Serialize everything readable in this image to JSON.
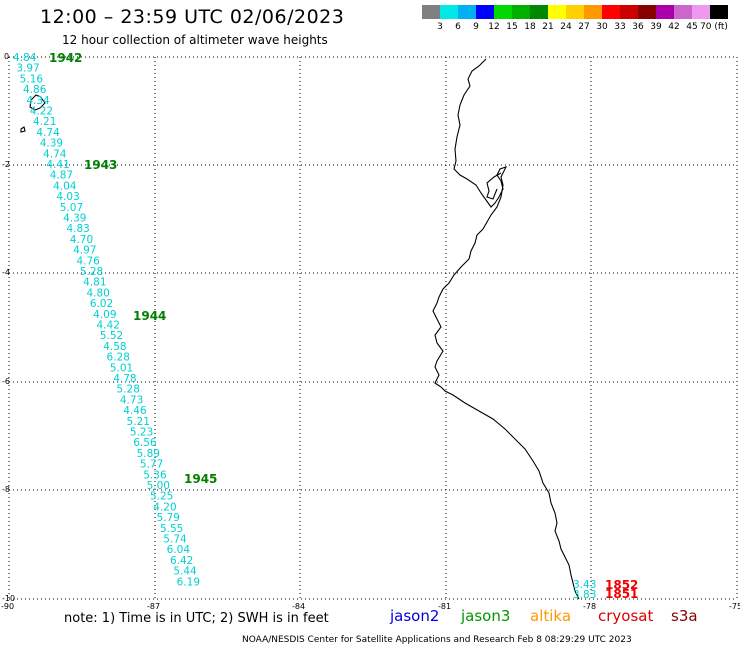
{
  "header": {
    "title": "12:00 – 23:59 UTC 02/06/2023",
    "subtitle": "12 hour collection of altimeter wave heights"
  },
  "colorbar": {
    "colors": [
      "#808080",
      "#00e8e8",
      "#00b0f0",
      "#0000ff",
      "#00d800",
      "#00b000",
      "#008800",
      "#ffff00",
      "#ffd000",
      "#ff9900",
      "#ff0000",
      "#cc0000",
      "#880000",
      "#aa00aa",
      "#cc66cc",
      "#ee99ee",
      "#000000"
    ],
    "labels": [
      "3",
      "6",
      "9",
      "12",
      "15",
      "18",
      "21",
      "24",
      "27",
      "30",
      "33",
      "36",
      "39",
      "42",
      "45",
      "70 (ft)"
    ]
  },
  "map": {
    "lon_range": [
      -90,
      -75
    ],
    "lat_range": [
      -10,
      0
    ],
    "x_ticks": [
      "-90",
      "-87",
      "-84",
      "-81",
      "-78",
      "-75"
    ],
    "y_ticks": [
      "0",
      "-2",
      "-4",
      "-6",
      "-8",
      "-10"
    ]
  },
  "track_jason3": {
    "color": "#00d0d0",
    "heights": [
      "4.84",
      "3.97",
      "5.16",
      "4.86",
      "4.34",
      "4.22",
      "4.21",
      "4.74",
      "4.39",
      "4.74",
      "4.41",
      "4.87",
      "4.04",
      "4.03",
      "5.07",
      "4.39",
      "4.83",
      "4.70",
      "4.97",
      "4.76",
      "5.28",
      "4.81",
      "4.80",
      "6.02",
      "4.09",
      "4.42",
      "5.52",
      "4.58",
      "6.28",
      "5.01",
      "4.78",
      "5.28",
      "4.73",
      "4.46",
      "5.21",
      "5.23",
      "6.56",
      "5.89",
      "5.77",
      "5.36",
      "5.00",
      "5.25",
      "4.20",
      "5.79",
      "5.55",
      "5.74",
      "6.04",
      "6.42",
      "5.44",
      "6.19"
    ],
    "times": [
      "1942",
      "1943",
      "1944",
      "1945"
    ],
    "time_color": "#008000"
  },
  "track_s3a": {
    "heights": [
      "3.43",
      "3.83"
    ],
    "times": [
      "1852",
      "1851"
    ],
    "time_color": "#ee0000"
  },
  "footer": {
    "note": "note:  1) Time is in UTC;  2) SWH is in feet",
    "satellites": [
      {
        "name": "jason2",
        "color": "#0000dd"
      },
      {
        "name": "jason3",
        "color": "#009900"
      },
      {
        "name": "altika",
        "color": "#ff9900"
      },
      {
        "name": "cryosat",
        "color": "#dd0000"
      },
      {
        "name": "s3a",
        "color": "#880000"
      }
    ],
    "credit": "NOAA/NESDIS Center for Satellite Applications and Research    Feb  8 08:29:29 UTC 2023"
  }
}
